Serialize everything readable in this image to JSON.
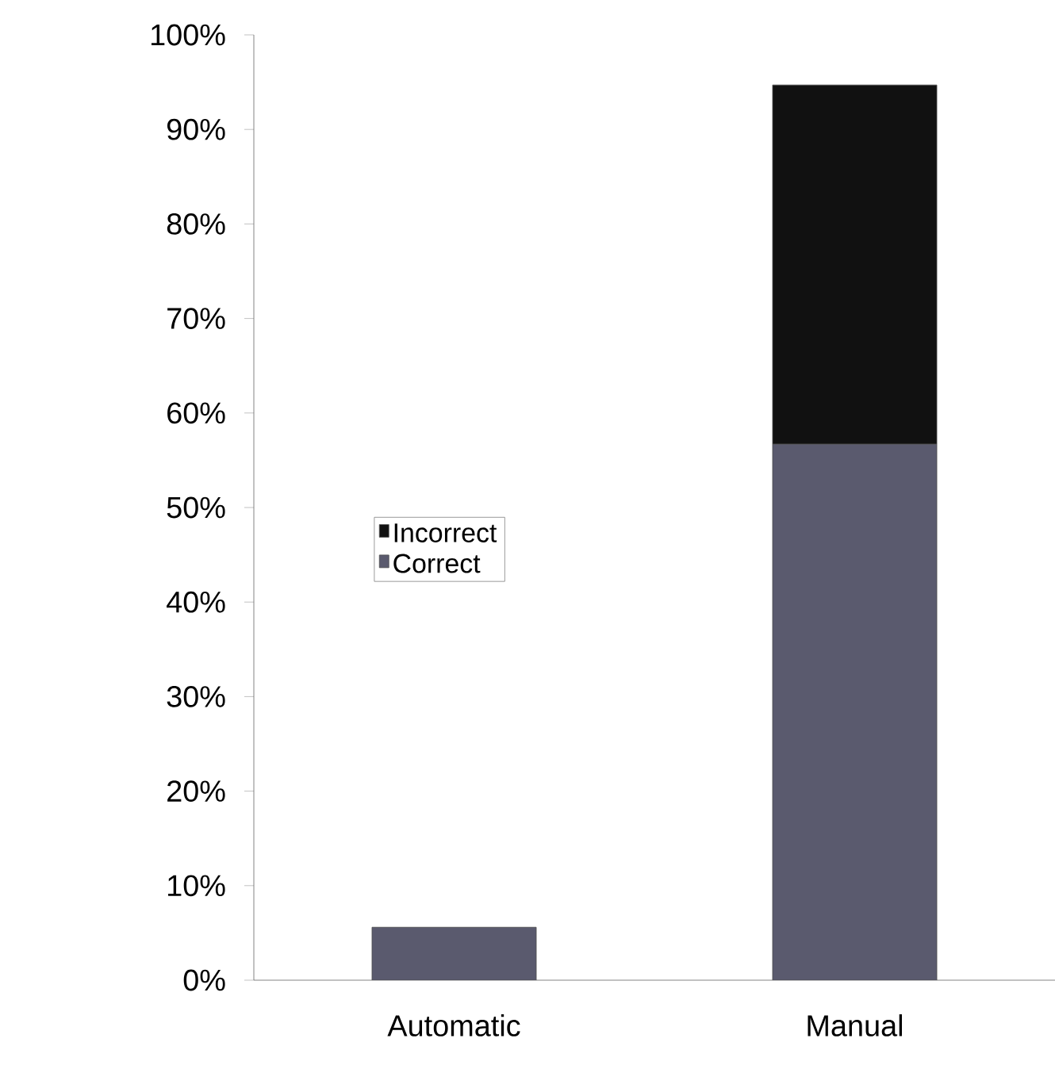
{
  "chart_data": {
    "type": "bar",
    "stacked": true,
    "categories": [
      "Automatic",
      "Manual"
    ],
    "series": [
      {
        "name": "Correct",
        "color": "#5a5a6e",
        "values": [
          5.6,
          56.7
        ]
      },
      {
        "name": "Incorrect",
        "color": "#111111",
        "values": [
          0,
          38.0
        ]
      }
    ],
    "ylim": [
      0,
      100
    ],
    "yticks": [
      {
        "value": 0,
        "label": "0%"
      },
      {
        "value": 10,
        "label": "10%"
      },
      {
        "value": 20,
        "label": "20%"
      },
      {
        "value": 30,
        "label": "30%"
      },
      {
        "value": 40,
        "label": "40%"
      },
      {
        "value": 50,
        "label": "50%"
      },
      {
        "value": 60,
        "label": "60%"
      },
      {
        "value": 70,
        "label": "70%"
      },
      {
        "value": 80,
        "label": "80%"
      },
      {
        "value": 90,
        "label": "90%"
      },
      {
        "value": 100,
        "label": "100%"
      }
    ],
    "grid": false,
    "legend": "left"
  }
}
